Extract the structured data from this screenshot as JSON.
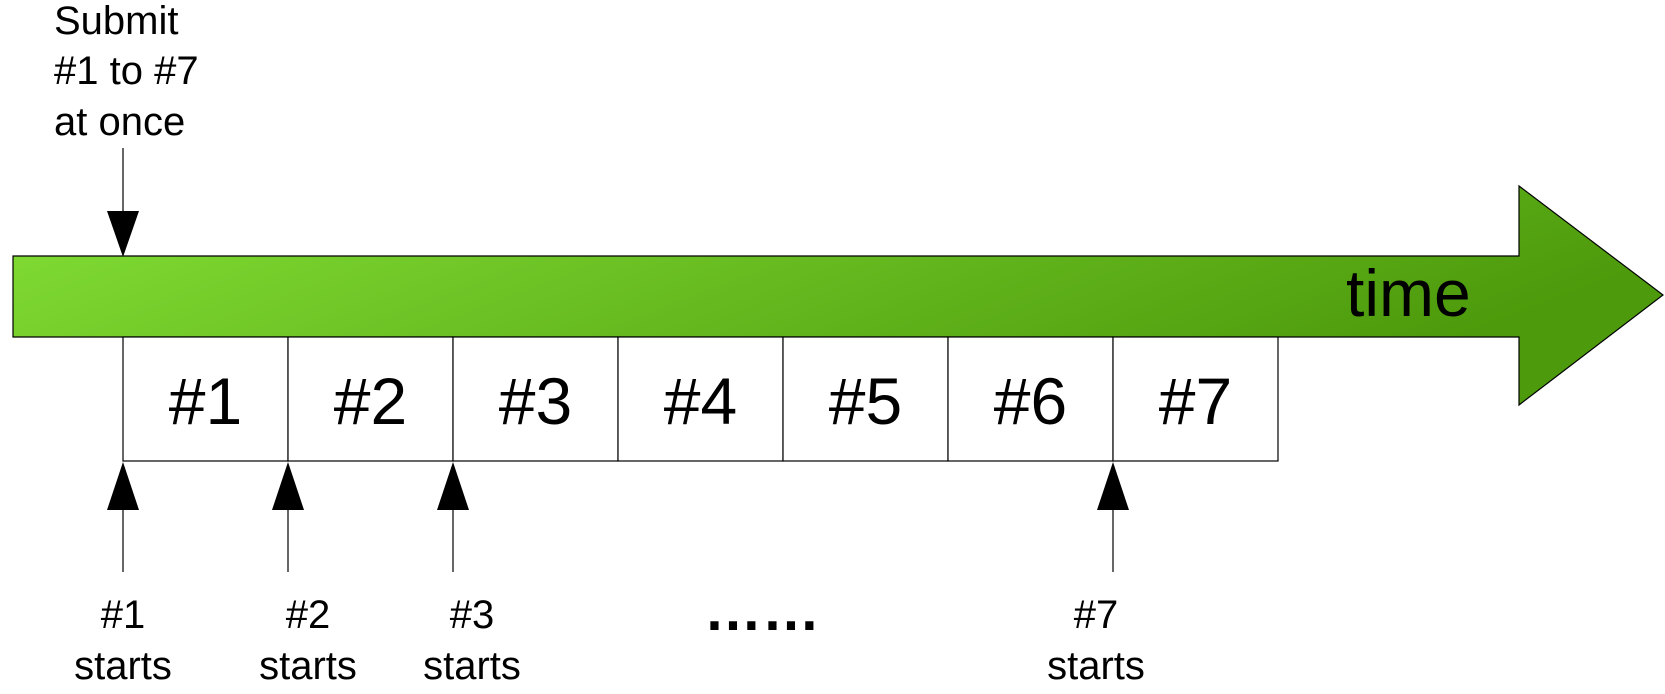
{
  "colors": {
    "arrow_light": "#84e036",
    "arrow_dark": "#4d9a0c",
    "outline": "#000000",
    "box_fill": "#ffffff",
    "marker_fill": "#000000"
  },
  "submit_label": {
    "lines": [
      "Submit",
      "#1 to #7",
      "at once"
    ]
  },
  "timeline": {
    "label": "time"
  },
  "tasks": [
    "#1",
    "#2",
    "#3",
    "#4",
    "#5",
    "#6",
    "#7"
  ],
  "start_markers": [
    {
      "task_index": 0,
      "lines": [
        "#1",
        "starts"
      ]
    },
    {
      "task_index": 1,
      "lines": [
        "#2",
        "starts"
      ]
    },
    {
      "task_index": 2,
      "lines": [
        "#3",
        "starts"
      ]
    },
    {
      "task_index": 6,
      "lines": [
        "#7",
        "starts"
      ]
    }
  ],
  "ellipsis": "……"
}
